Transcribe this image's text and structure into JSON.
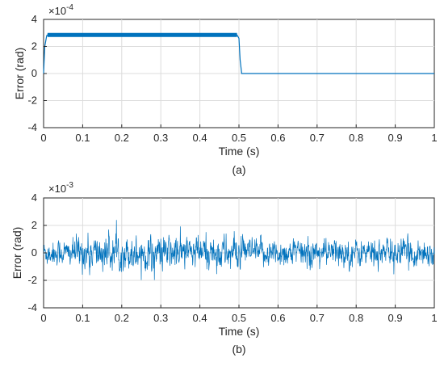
{
  "chart_data": [
    {
      "type": "line",
      "caption": "(a)",
      "xlabel": "Time (s)",
      "ylabel": "Error (rad)",
      "xlim": [
        0,
        1
      ],
      "ylim": [
        -4,
        4
      ],
      "y_multiplier": "×10",
      "y_exponent": "-4",
      "xticks": [
        "0",
        "0.1",
        "0.2",
        "0.3",
        "0.4",
        "0.5",
        "0.6",
        "0.7",
        "0.8",
        "0.9",
        "1"
      ],
      "yticks": [
        "-4",
        "-2",
        "0",
        "2",
        "4"
      ],
      "grid": true,
      "color": "#0072BD",
      "series": [
        {
          "x": [
            0,
            0.003,
            0.008,
            0.01,
            0.49,
            0.495,
            0.5,
            0.503,
            0.507,
            1
          ],
          "y": [
            0,
            2.0,
            2.8,
            2.85,
            2.85,
            2.85,
            2.6,
            1.0,
            0.0,
            0.0
          ]
        }
      ],
      "band": {
        "x": [
          0.01,
          0.495
        ],
        "y": [
          2.7,
          3.0
        ]
      }
    },
    {
      "type": "line",
      "caption": "(b)",
      "xlabel": "Time (s)",
      "ylabel": "Error (rad)",
      "xlim": [
        0,
        1
      ],
      "ylim": [
        -4,
        4
      ],
      "y_multiplier": "×10",
      "y_exponent": "-3",
      "xticks": [
        "0",
        "0.1",
        "0.2",
        "0.3",
        "0.4",
        "0.5",
        "0.6",
        "0.7",
        "0.8",
        "0.9",
        "1"
      ],
      "yticks": [
        "-4",
        "-2",
        "0",
        "2",
        "4"
      ],
      "grid": true,
      "color": "#0072BD",
      "series": [
        {
          "description_free": true,
          "x_range": [
            0,
            1
          ],
          "y_std": 0.55,
          "y_min": -2.1,
          "y_max": 2.4
        }
      ]
    }
  ]
}
